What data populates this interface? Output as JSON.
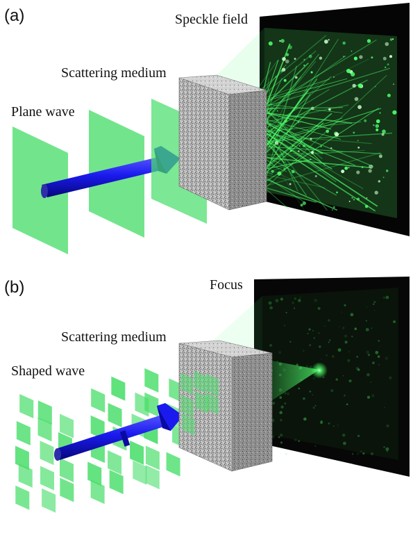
{
  "panel_a": {
    "label": "(a)",
    "speckle_label": "Speckle field",
    "medium_label": "Scattering medium",
    "wave_label": "Plane wave"
  },
  "panel_b": {
    "label": "(b)",
    "focus_label": "Focus",
    "medium_label": "Scattering medium",
    "wave_label": "Shaped wave"
  },
  "colors": {
    "wavefront": "#4ade6b",
    "wavefront_edge": "#34c957",
    "beam": "#1a1aee",
    "beam_dark": "#0a0aa0",
    "screen": "#060606",
    "medium": "#bdbdbd",
    "light": "#4dff6a"
  }
}
